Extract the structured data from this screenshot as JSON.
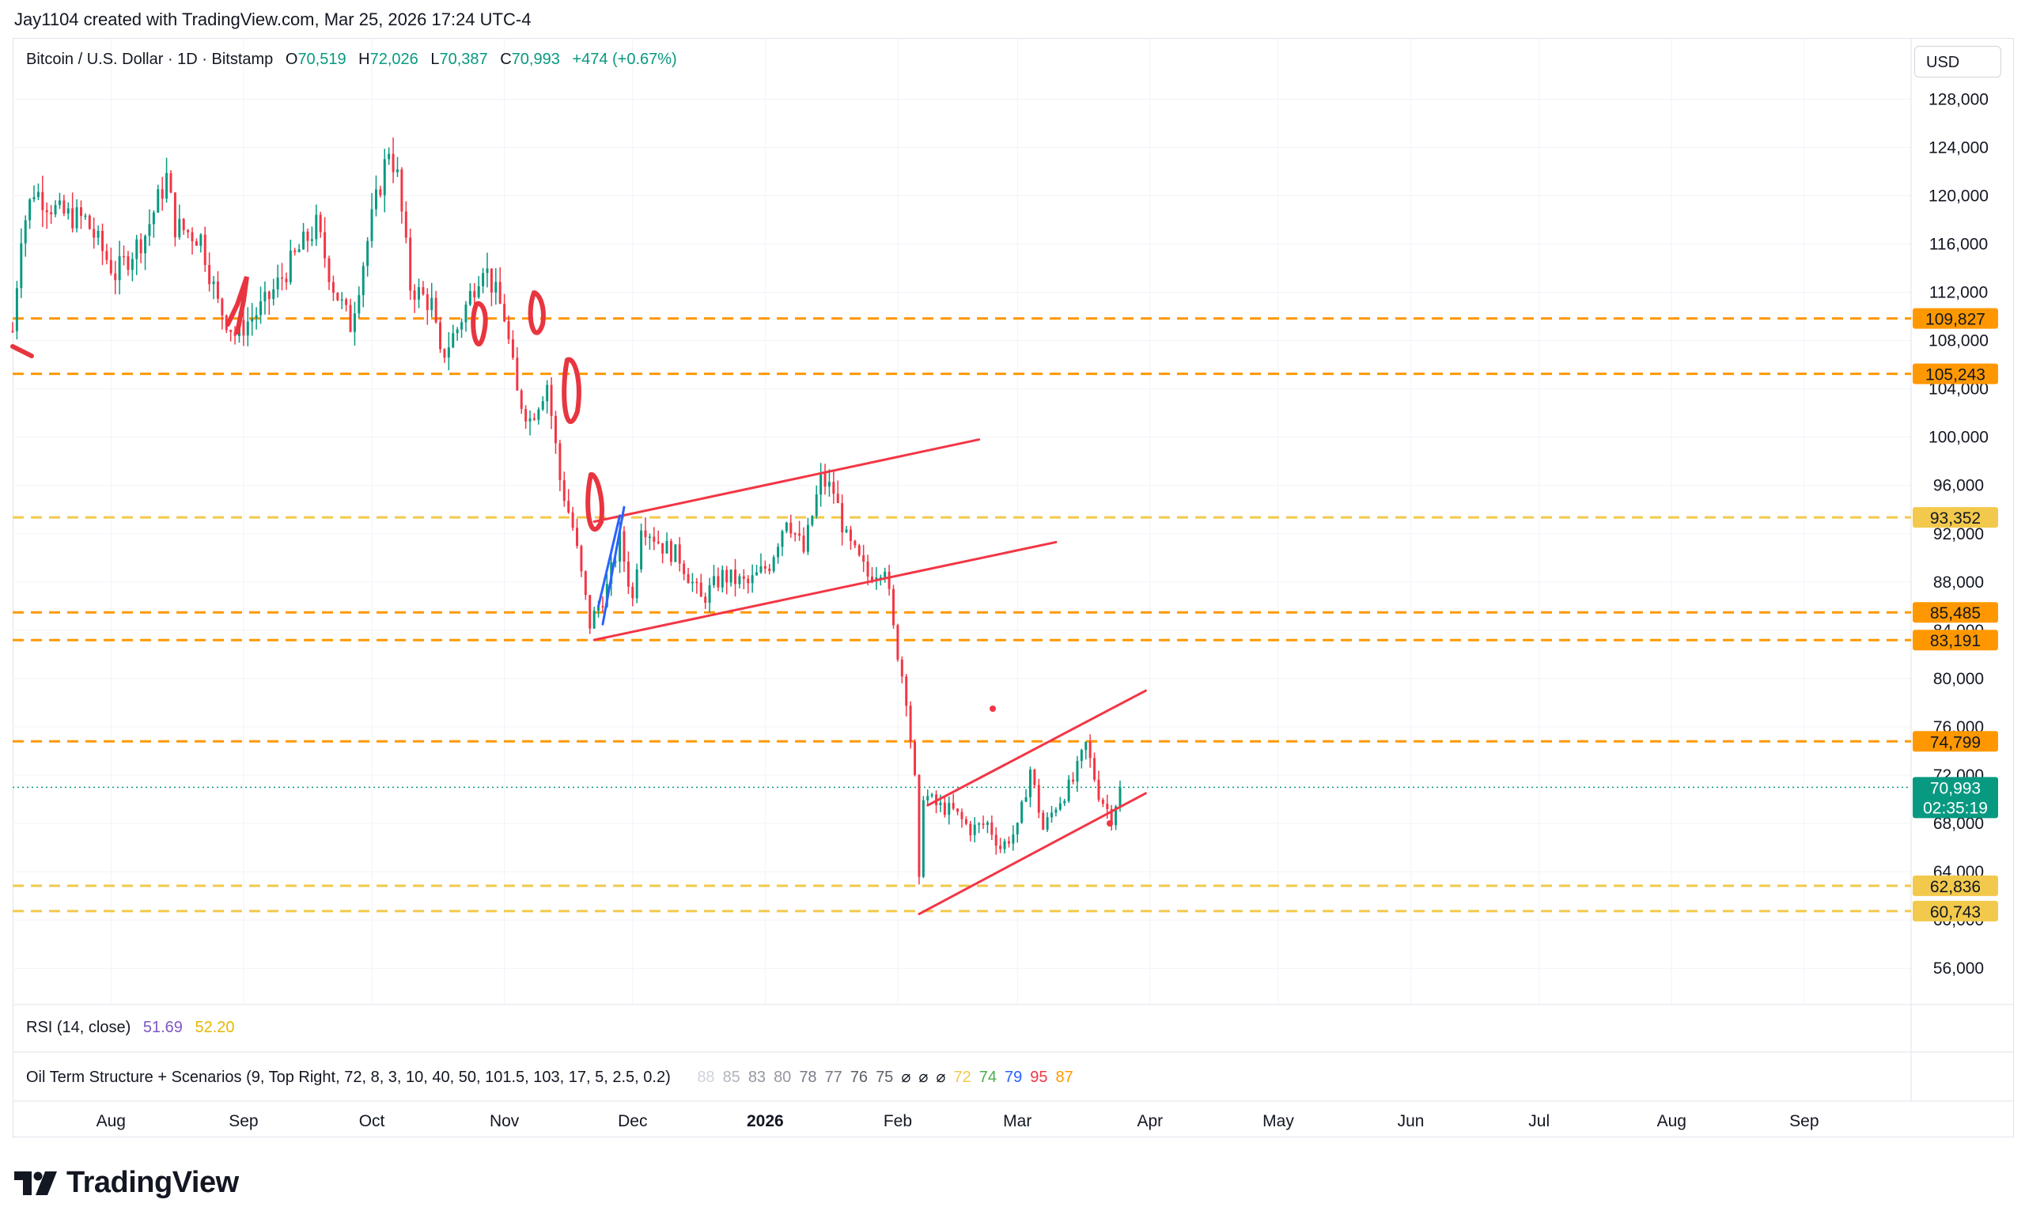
{
  "credit": "Jay1104 created with TradingView.com, Mar 25, 2026 17:24 UTC-4",
  "currency": "USD",
  "logo_text": "TradingView",
  "legend": {
    "title": "Bitcoin / U.S. Dollar · 1D · Bitstamp",
    "o_label": "O",
    "o_value": "70,519",
    "h_label": "H",
    "h_value": "72,026",
    "l_label": "L",
    "l_value": "70,387",
    "c_label": "C",
    "c_value": "70,993",
    "change": "+474 (+0.67%)"
  },
  "rsi": {
    "label": "RSI (14, close)",
    "value1": "51.69",
    "value2": "52.20"
  },
  "oil": {
    "label": "Oil Term Structure + Scenarios (9, Top Right, 72, 8, 3, 10, 40, 50, 101.5, 103, 17, 5, 2.5, 0.2)",
    "values": [
      {
        "text": "88",
        "color": "#d1d4dc"
      },
      {
        "text": "85",
        "color": "#b2b5be"
      },
      {
        "text": "83",
        "color": "#9598a1"
      },
      {
        "text": "80",
        "color": "#9598a1"
      },
      {
        "text": "78",
        "color": "#787b86"
      },
      {
        "text": "77",
        "color": "#787b86"
      },
      {
        "text": "76",
        "color": "#5d606b"
      },
      {
        "text": "75",
        "color": "#5d606b"
      },
      {
        "text": "⌀",
        "color": "#131722"
      },
      {
        "text": "⌀",
        "color": "#131722"
      },
      {
        "text": "⌀",
        "color": "#131722"
      },
      {
        "text": "72",
        "color": "#f2c94c"
      },
      {
        "text": "74",
        "color": "#4caf50"
      },
      {
        "text": "79",
        "color": "#2962ff"
      },
      {
        "text": "95",
        "color": "#f23645"
      },
      {
        "text": "87",
        "color": "#ff9800"
      }
    ]
  },
  "chart_data": {
    "type": "candlestick",
    "symbol": "Bitcoin / U.S. Dollar",
    "interval": "1D",
    "exchange": "Bitstamp",
    "ylim": [
      53000,
      133000
    ],
    "y_ticks": [
      56000,
      60000,
      64000,
      68000,
      72000,
      76000,
      80000,
      84000,
      88000,
      92000,
      96000,
      100000,
      104000,
      108000,
      112000,
      116000,
      120000,
      124000,
      128000
    ],
    "y_tick_labels": [
      "56,000",
      "60,000",
      "64,000",
      "68,000",
      "72,000",
      "76,000",
      "80,000",
      "84,000",
      "88,000",
      "92,000",
      "96,000",
      "100,000",
      "104,000",
      "108,000",
      "112,000",
      "116,000",
      "120,000",
      "124,000",
      "128,000"
    ],
    "x_start": "2025-07-09",
    "x_end": "2026-09-26",
    "x_ticks": [
      {
        "date": "2025-08-01",
        "label": "Aug",
        "bold": false
      },
      {
        "date": "2025-09-01",
        "label": "Sep",
        "bold": false
      },
      {
        "date": "2025-10-01",
        "label": "Oct",
        "bold": false
      },
      {
        "date": "2025-11-01",
        "label": "Nov",
        "bold": false
      },
      {
        "date": "2025-12-01",
        "label": "Dec",
        "bold": false
      },
      {
        "date": "2026-01-01",
        "label": "2026",
        "bold": true
      },
      {
        "date": "2026-02-01",
        "label": "Feb",
        "bold": false
      },
      {
        "date": "2026-03-01",
        "label": "Mar",
        "bold": false
      },
      {
        "date": "2026-04-01",
        "label": "Apr",
        "bold": false
      },
      {
        "date": "2026-05-01",
        "label": "May",
        "bold": false
      },
      {
        "date": "2026-06-01",
        "label": "Jun",
        "bold": false
      },
      {
        "date": "2026-07-01",
        "label": "Jul",
        "bold": false
      },
      {
        "date": "2026-08-01",
        "label": "Aug",
        "bold": false
      },
      {
        "date": "2026-09-01",
        "label": "Sep",
        "bold": false
      }
    ],
    "price_path": [
      [
        "2025-07-09",
        108800
      ],
      [
        "2025-07-11",
        117000
      ],
      [
        "2025-07-14",
        120500
      ],
      [
        "2025-07-20",
        118500
      ],
      [
        "2025-07-26",
        118000
      ],
      [
        "2025-08-02",
        113500
      ],
      [
        "2025-08-09",
        116800
      ],
      [
        "2025-08-14",
        121500
      ],
      [
        "2025-08-16",
        117500
      ],
      [
        "2025-08-22",
        116500
      ],
      [
        "2025-08-26",
        111000
      ],
      [
        "2025-08-30",
        108500
      ],
      [
        "2025-09-06",
        111000
      ],
      [
        "2025-09-14",
        115500
      ],
      [
        "2025-09-18",
        117500
      ],
      [
        "2025-09-22",
        112500
      ],
      [
        "2025-09-26",
        109300
      ],
      [
        "2025-10-01",
        118000
      ],
      [
        "2025-10-05",
        124000
      ],
      [
        "2025-10-07",
        121500
      ],
      [
        "2025-10-10",
        112500
      ],
      [
        "2025-10-15",
        111000
      ],
      [
        "2025-10-17",
        106500
      ],
      [
        "2025-10-21",
        109000
      ],
      [
        "2025-10-27",
        114500
      ],
      [
        "2025-11-01",
        110000
      ],
      [
        "2025-11-04",
        103500
      ],
      [
        "2025-11-07",
        101500
      ],
      [
        "2025-11-11",
        104500
      ],
      [
        "2025-11-14",
        96500
      ],
      [
        "2025-11-17",
        92500
      ],
      [
        "2025-11-21",
        84500
      ],
      [
        "2025-11-25",
        87500
      ],
      [
        "2025-11-28",
        91500
      ],
      [
        "2025-12-01",
        86500
      ],
      [
        "2025-12-03",
        93000
      ],
      [
        "2025-12-08",
        91000
      ],
      [
        "2025-12-12",
        90000
      ],
      [
        "2025-12-17",
        86500
      ],
      [
        "2025-12-22",
        88500
      ],
      [
        "2025-12-28",
        87800
      ],
      [
        "2026-01-02",
        89500
      ],
      [
        "2026-01-06",
        93500
      ],
      [
        "2026-01-10",
        90500
      ],
      [
        "2026-01-14",
        96500
      ],
      [
        "2026-01-17",
        95500
      ],
      [
        "2026-01-20",
        91500
      ],
      [
        "2026-01-25",
        88500
      ],
      [
        "2026-01-29",
        89500
      ],
      [
        "2026-01-31",
        84000
      ],
      [
        "2026-02-03",
        78500
      ],
      [
        "2026-02-05",
        71500
      ],
      [
        "2026-02-06",
        63000
      ],
      [
        "2026-02-07",
        70500
      ],
      [
        "2026-02-10",
        69500
      ],
      [
        "2026-02-14",
        69000
      ],
      [
        "2026-02-18",
        67500
      ],
      [
        "2026-02-22",
        68000
      ],
      [
        "2026-02-25",
        66000
      ],
      [
        "2026-03-01",
        67500
      ],
      [
        "2026-03-04",
        72500
      ],
      [
        "2026-03-07",
        67500
      ],
      [
        "2026-03-10",
        69500
      ],
      [
        "2026-03-14",
        71500
      ],
      [
        "2026-03-17",
        74500
      ],
      [
        "2026-03-20",
        70500
      ],
      [
        "2026-03-23",
        68500
      ],
      [
        "2026-03-25",
        70993
      ]
    ],
    "horizontal_levels": [
      {
        "price": 109827,
        "label": "109,827",
        "color": "#ff9800",
        "label_bg": "#ff9800"
      },
      {
        "price": 105243,
        "label": "105,243",
        "color": "#ff9800",
        "label_bg": "#ff9800"
      },
      {
        "price": 93352,
        "label": "93,352",
        "color": "#f2c94c",
        "label_bg": "#f2c94c"
      },
      {
        "price": 85485,
        "label": "85,485",
        "color": "#ff9800",
        "label_bg": "#ff9800"
      },
      {
        "price": 83191,
        "label": "83,191",
        "color": "#ff9800",
        "label_bg": "#ff9800"
      },
      {
        "price": 74799,
        "label": "74,799",
        "color": "#ff9800",
        "label_bg": "#ff9800"
      },
      {
        "price": 62836,
        "label": "62,836",
        "color": "#f2c94c",
        "label_bg": "#f2c94c"
      },
      {
        "price": 60743,
        "label": "60,743",
        "color": "#f2c94c",
        "label_bg": "#f2c94c"
      }
    ],
    "last_price": {
      "price": 70993,
      "label": "70,993",
      "countdown": "02:35:19",
      "color": "#089981"
    },
    "trendlines": [
      {
        "from": [
          "2025-11-22",
          93000
        ],
        "to": [
          "2026-02-20",
          99800
        ],
        "color": "#f23645"
      },
      {
        "from": [
          "2025-11-22",
          83200
        ],
        "to": [
          "2026-03-10",
          91300
        ],
        "color": "#f23645"
      },
      {
        "from": [
          "2026-02-08",
          69500
        ],
        "to": [
          "2026-03-31",
          79000
        ],
        "color": "#f23645"
      },
      {
        "from": [
          "2026-02-06",
          60500
        ],
        "to": [
          "2026-03-31",
          70500
        ],
        "color": "#f23645"
      },
      {
        "from": [
          "2025-11-23",
          86000
        ],
        "to": [
          "2025-11-28",
          93500
        ],
        "color": "#2962ff"
      },
      {
        "from": [
          "2025-11-24",
          84500
        ],
        "to": [
          "2025-11-29",
          94200
        ],
        "color": "#2962ff"
      }
    ]
  }
}
